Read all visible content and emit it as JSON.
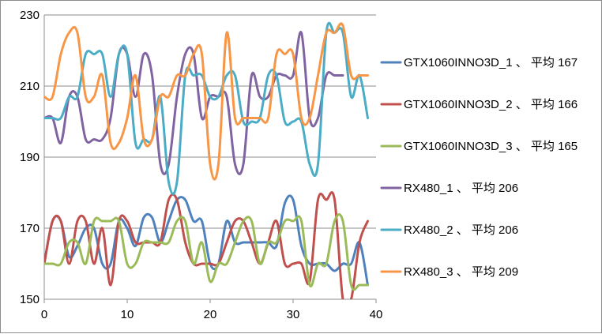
{
  "chart_data": {
    "type": "line",
    "x": [
      0,
      1,
      2,
      3,
      4,
      5,
      6,
      7,
      8,
      9,
      10,
      11,
      12,
      13,
      14,
      15,
      16,
      17,
      18,
      19,
      20,
      21,
      22,
      23,
      24,
      25,
      26,
      27,
      28,
      29,
      30,
      31,
      32,
      33,
      34,
      35,
      36,
      37,
      38,
      39
    ],
    "xlim": [
      0,
      40
    ],
    "ylim": [
      150,
      230
    ],
    "xticks": [
      0,
      10,
      20,
      30,
      40
    ],
    "yticks": [
      150,
      170,
      190,
      210,
      230
    ],
    "grid": "horizontal",
    "legend_position": "right",
    "series": [
      {
        "name": "GTX1060INNO3D_1 、 平均 167",
        "color": "#4f81bd",
        "values": [
          160,
          172,
          172,
          162,
          165,
          170,
          170,
          160,
          160,
          172,
          170,
          165,
          173,
          173,
          166,
          172,
          178,
          178,
          172,
          172,
          160,
          160,
          172,
          166,
          166,
          166,
          166,
          166,
          165,
          177,
          178,
          165,
          160,
          160,
          160,
          158,
          160,
          160,
          166,
          154
        ]
      },
      {
        "name": "GTX1060INNO3D_2 、 平均 166",
        "color": "#c0504d",
        "values": [
          160,
          172,
          172,
          160,
          172,
          172,
          160,
          170,
          154,
          172,
          172,
          166,
          166,
          166,
          166,
          178,
          178,
          166,
          160,
          160,
          160,
          160,
          166,
          172,
          172,
          166,
          160,
          166,
          172,
          160,
          160,
          160,
          155,
          178,
          178,
          178,
          150,
          150,
          166,
          172
        ]
      },
      {
        "name": "GTX1060INNO3D_3 、 平均 165",
        "color": "#9bbb59",
        "values": [
          160,
          160,
          160,
          166,
          166,
          160,
          172,
          172,
          172,
          172,
          160,
          160,
          166,
          166,
          166,
          166,
          172,
          172,
          160,
          166,
          155,
          160,
          160,
          166,
          172,
          172,
          160,
          166,
          166,
          172,
          172,
          172,
          154,
          160,
          160,
          172,
          172,
          154,
          154,
          154
        ]
      },
      {
        "name": "RX480_1 、 平均 206",
        "color": "#8064a2",
        "values": [
          201,
          201,
          194,
          207,
          207,
          195,
          195,
          195,
          201,
          219,
          219,
          207,
          219,
          213,
          188,
          188,
          207,
          219,
          219,
          201,
          207,
          207,
          207,
          188,
          188,
          213,
          207,
          207,
          213,
          213,
          213,
          225,
          201,
          201,
          213,
          213,
          213,
          null,
          null,
          null
        ]
      },
      {
        "name": "RX480_2 、 平均 206",
        "color": "#4bacc6",
        "values": [
          201,
          201,
          201,
          207,
          207,
          219,
          219,
          219,
          207,
          219,
          219,
          194,
          195,
          195,
          207,
          183,
          183,
          213,
          213,
          213,
          207,
          207,
          213,
          213,
          200,
          200,
          201,
          213,
          213,
          200,
          200,
          200,
          188,
          188,
          225,
          225,
          225,
          207,
          213,
          201
        ]
      },
      {
        "name": "RX480_3 、 平均 209",
        "color": "#f79646",
        "values": [
          207,
          207,
          219,
          225,
          225,
          207,
          207,
          213,
          194,
          194,
          201,
          213,
          195,
          195,
          207,
          207,
          213,
          213,
          219,
          219,
          188,
          188,
          225,
          201,
          201,
          201,
          201,
          201,
          219,
          219,
          219,
          201,
          201,
          213,
          225,
          225,
          227,
          213,
          213,
          213
        ]
      }
    ]
  }
}
